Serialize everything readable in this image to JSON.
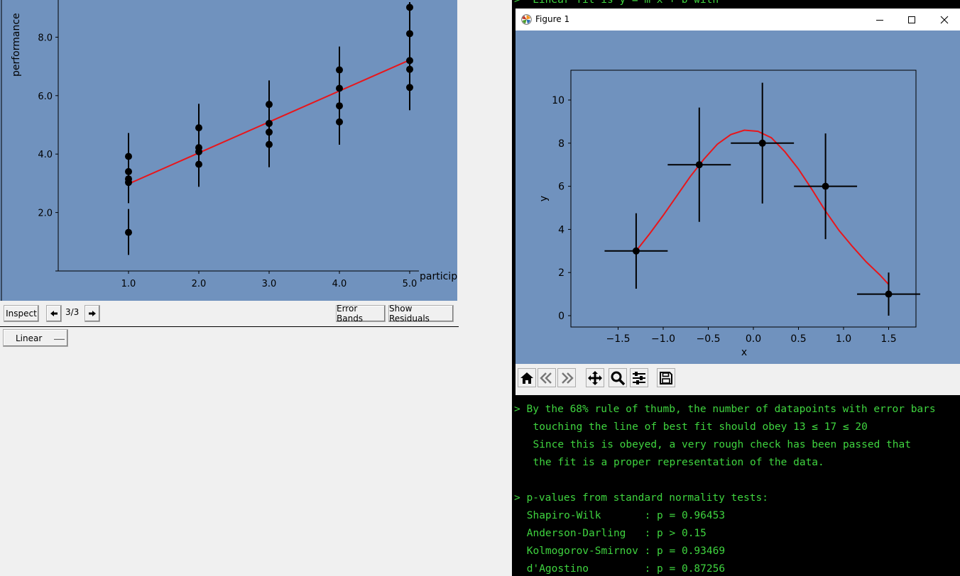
{
  "left_window": {
    "toolbar": {
      "inspect_label": "Inspect",
      "prev_icon": "left-arrow-icon",
      "page_label": "3/3",
      "next_icon": "right-arrow-icon",
      "error_bands_label": "Error Bands",
      "show_residuals_label": "Show Residuals"
    },
    "fit_selector": {
      "selected": "Linear"
    }
  },
  "figure_window": {
    "title": "Figure 1",
    "app_icon": "matplotlib-icon",
    "controls": [
      "minimize-icon",
      "maximize-icon",
      "close-icon"
    ],
    "toolbar_icons": [
      "home-icon",
      "back-icon",
      "forward-icon",
      "pan-icon",
      "zoom-icon",
      "configure-subplots-icon",
      "save-icon"
    ]
  },
  "console": {
    "lines": [
      ">  Linear fit is y = m x + b with",
      "> By the 68% rule of thumb, the number of datapoints with error bars",
      "  touching the line of best fit should obey 13 ≤ 17 ≤ 20",
      "  Since this is obeyed, a very rough check has been passed that",
      "  the fit is a proper representation of the data.",
      "> p-values from standard normality tests:",
      " Shapiro-Wilk       : p = 0.96453",
      " Anderson-Darling   : p > 0.15",
      " Kolmogorov-Smirnov : p = 0.93469",
      " d'Agostino         : p = 0.87256"
    ]
  },
  "colors": {
    "plot_background": "#7092be",
    "fit_line": "#e8161b",
    "console_text": "#3fd43f",
    "console_background": "#000000"
  },
  "chart_data": [
    {
      "type": "scatter",
      "title": "",
      "xlabel": "particip",
      "ylabel": "performance",
      "xlim": [
        0,
        5.15
      ],
      "ylim": [
        0,
        9.2
      ],
      "x_ticks": [
        1.0,
        2.0,
        3.0,
        4.0,
        5.0
      ],
      "x_tick_labels": [
        "1.0",
        "2.0",
        "3.0",
        "4.0",
        "5.0"
      ],
      "y_ticks": [
        2.0,
        4.0,
        6.0,
        8.0
      ],
      "y_tick_labels": [
        "2.0",
        "4.0",
        "6.0",
        "8.0"
      ],
      "grid": false,
      "points": [
        {
          "x": 1.0,
          "y": 3.92
        },
        {
          "x": 1.0,
          "y": 3.4
        },
        {
          "x": 1.0,
          "y": 3.15
        },
        {
          "x": 1.0,
          "y": 3.03
        },
        {
          "x": 1.0,
          "y": 1.32
        },
        {
          "x": 2.0,
          "y": 4.9
        },
        {
          "x": 2.0,
          "y": 4.22
        },
        {
          "x": 2.0,
          "y": 4.08
        },
        {
          "x": 2.0,
          "y": 3.65
        },
        {
          "x": 3.0,
          "y": 5.7
        },
        {
          "x": 3.0,
          "y": 5.05
        },
        {
          "x": 3.0,
          "y": 4.75
        },
        {
          "x": 3.0,
          "y": 4.33
        },
        {
          "x": 4.0,
          "y": 6.88
        },
        {
          "x": 4.0,
          "y": 6.25
        },
        {
          "x": 4.0,
          "y": 5.65
        },
        {
          "x": 4.0,
          "y": 5.1
        },
        {
          "x": 5.0,
          "y": 9.02
        },
        {
          "x": 5.0,
          "y": 8.12
        },
        {
          "x": 5.0,
          "y": 7.2
        },
        {
          "x": 5.0,
          "y": 6.9
        },
        {
          "x": 5.0,
          "y": 6.28
        }
      ],
      "error_bars": [
        {
          "x": 1.0,
          "ylow": 0.55,
          "yhigh": 2.12
        },
        {
          "x": 1.0,
          "ylow": 2.32,
          "yhigh": 4.72
        },
        {
          "x": 2.0,
          "ylow": 2.88,
          "yhigh": 5.72
        },
        {
          "x": 3.0,
          "ylow": 3.55,
          "yhigh": 6.52
        },
        {
          "x": 4.0,
          "ylow": 4.32,
          "yhigh": 7.68
        },
        {
          "x": 5.0,
          "ylow": 5.5,
          "yhigh": 9.2
        }
      ],
      "fit_line": {
        "x": [
          1.0,
          5.0
        ],
        "y": [
          2.98,
          7.22
        ]
      }
    },
    {
      "type": "scatter",
      "title": "",
      "xlabel": "x",
      "ylabel": "y",
      "xlim": [
        -1.75,
        1.95
      ],
      "ylim": [
        -0.5,
        11.3
      ],
      "x_ticks": [
        -1.5,
        -1.0,
        -0.5,
        0.0,
        0.5,
        1.0,
        1.5
      ],
      "x_tick_labels": [
        "−1.5",
        "−1.0",
        "−0.5",
        "0.0",
        "0.5",
        "1.0",
        "1.5"
      ],
      "y_ticks": [
        0,
        2,
        4,
        6,
        8,
        10
      ],
      "y_tick_labels": [
        "0",
        "2",
        "4",
        "6",
        "8",
        "10"
      ],
      "grid": false,
      "points": [
        {
          "x": -1.3,
          "y": 3,
          "xerr": 0.35,
          "yerr": 1.75
        },
        {
          "x": -0.6,
          "y": 7,
          "xerr": 0.35,
          "yerr": 2.65
        },
        {
          "x": 0.1,
          "y": 8,
          "xerr": 0.35,
          "yerr": 2.8
        },
        {
          "x": 0.8,
          "y": 6,
          "xerr": 0.35,
          "yerr": 2.45
        },
        {
          "x": 1.5,
          "y": 1,
          "xerr": 0.35,
          "yerr": 1.0
        }
      ],
      "fit_curve": {
        "x": [
          -1.3,
          -1.15,
          -1.0,
          -0.85,
          -0.7,
          -0.55,
          -0.4,
          -0.25,
          -0.1,
          0.05,
          0.2,
          0.35,
          0.5,
          0.65,
          0.8,
          0.95,
          1.1,
          1.25,
          1.4,
          1.5
        ],
        "y": [
          3.0,
          3.8,
          4.65,
          5.55,
          6.45,
          7.25,
          7.95,
          8.4,
          8.6,
          8.55,
          8.25,
          7.6,
          6.8,
          5.85,
          4.85,
          3.95,
          3.2,
          2.5,
          1.9,
          1.45
        ]
      }
    }
  ]
}
